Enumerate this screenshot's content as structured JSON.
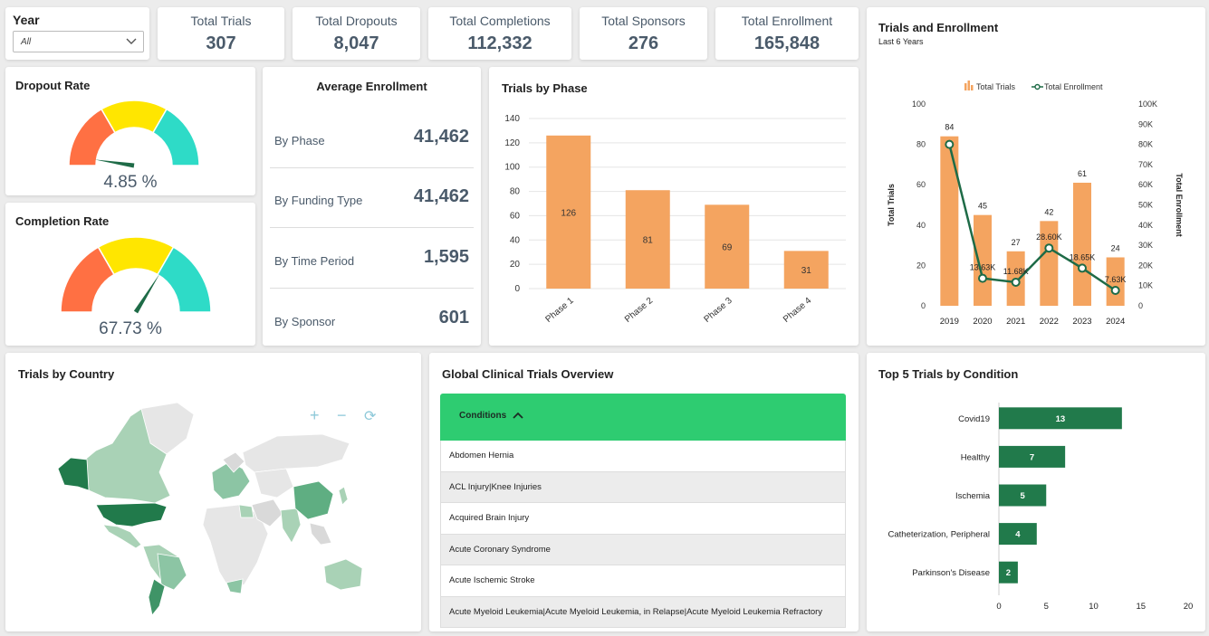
{
  "filter": {
    "label": "Year",
    "value": "All"
  },
  "kpis": [
    {
      "label": "Total Trials",
      "value": "307"
    },
    {
      "label": "Total Dropouts",
      "value": "8,047"
    },
    {
      "label": "Total Completions",
      "value": "112,332"
    },
    {
      "label": "Total Sponsors",
      "value": "276"
    },
    {
      "label": "Total Enrollment",
      "value": "165,848"
    }
  ],
  "dropout": {
    "title": "Dropout Rate",
    "value": "4.85 %",
    "percent": 4.85
  },
  "completion": {
    "title": "Completion Rate",
    "value": "67.73 %",
    "percent": 67.73
  },
  "gauge_colors": [
    "#ff7043",
    "#ffe600",
    "#2edbc7"
  ],
  "avg": {
    "title": "Average Enrollment",
    "rows": [
      {
        "label": "By Phase",
        "value": "41,462"
      },
      {
        "label": "By Funding Type",
        "value": "41,462"
      },
      {
        "label": "By Time Period",
        "value": "1,595"
      },
      {
        "label": "By Sponsor",
        "value": "601"
      }
    ]
  },
  "phase_title": "Trials by Phase",
  "trials_title": "Trials and Enrollment",
  "trials_subtitle": "Last 6 Years",
  "country": {
    "title": "Trials by Country",
    "controls": [
      "+",
      "−",
      "⟳"
    ]
  },
  "overview": {
    "title": "Global Clinical Trials Overview",
    "header": "Conditions",
    "rows": [
      "Abdomen Hernia",
      "ACL Injury|Knee Injuries",
      "Acquired Brain Injury",
      "Acute Coronary Syndrome",
      "Acute Ischemic Stroke",
      "Acute Myeloid Leukemia|Acute Myeloid Leukemia, in Relapse|Acute Myeloid Leukemia Refractory"
    ]
  },
  "top5_title": "Top 5 Trials by Condition",
  "colors": {
    "bar_orange": "#f4a460",
    "line_green": "#1e6b47",
    "bar_green": "#217a4b",
    "header_green": "#2ecc71"
  },
  "chart_data": [
    {
      "type": "bar",
      "title": "Trials by Phase",
      "categories": [
        "Phase 1",
        "Phase 2",
        "Phase 3",
        "Phase 4"
      ],
      "values": [
        126,
        81,
        69,
        31
      ],
      "ylim": [
        0,
        140
      ],
      "yticks": [
        0,
        20,
        40,
        60,
        80,
        100,
        120,
        140
      ],
      "grid": true
    },
    {
      "type": "bar",
      "title": "Trials and Enrollment",
      "subtitle": "Last 6 Years",
      "categories": [
        "2019",
        "2020",
        "2021",
        "2022",
        "2023",
        "2024"
      ],
      "series": [
        {
          "name": "Total Trials",
          "type": "bar",
          "axis": "left",
          "values": [
            84,
            45,
            27,
            42,
            61,
            24
          ],
          "labels": [
            "84",
            "45",
            "27",
            "42",
            "61",
            "24"
          ]
        },
        {
          "name": "Total Enrollment",
          "type": "line",
          "axis": "right",
          "values": [
            80000,
            13630,
            11680,
            28600,
            18650,
            7630
          ],
          "labels": [
            "",
            "13.63K",
            "11.68K",
            "28.60K",
            "18.65K",
            "7.63K"
          ]
        }
      ],
      "ylabel": "Total Trials",
      "y2label": "Total Enrollment",
      "ylim": [
        0,
        100
      ],
      "yticks": [
        0,
        20,
        40,
        60,
        80,
        100
      ],
      "y2lim": [
        0,
        100000
      ],
      "y2ticks": [
        "0",
        "10K",
        "20K",
        "30K",
        "40K",
        "50K",
        "60K",
        "70K",
        "80K",
        "90K",
        "100K"
      ],
      "legend": "top"
    },
    {
      "type": "bar",
      "orientation": "horizontal",
      "title": "Top 5 Trials by Condition",
      "categories": [
        "Covid19",
        "Healthy",
        "Ischemia",
        "Catheterization, Peripheral",
        "Parkinson's Disease"
      ],
      "values": [
        13,
        7,
        5,
        4,
        2
      ],
      "xlim": [
        0,
        20
      ],
      "xticks": [
        0,
        5,
        10,
        15,
        20
      ]
    }
  ]
}
